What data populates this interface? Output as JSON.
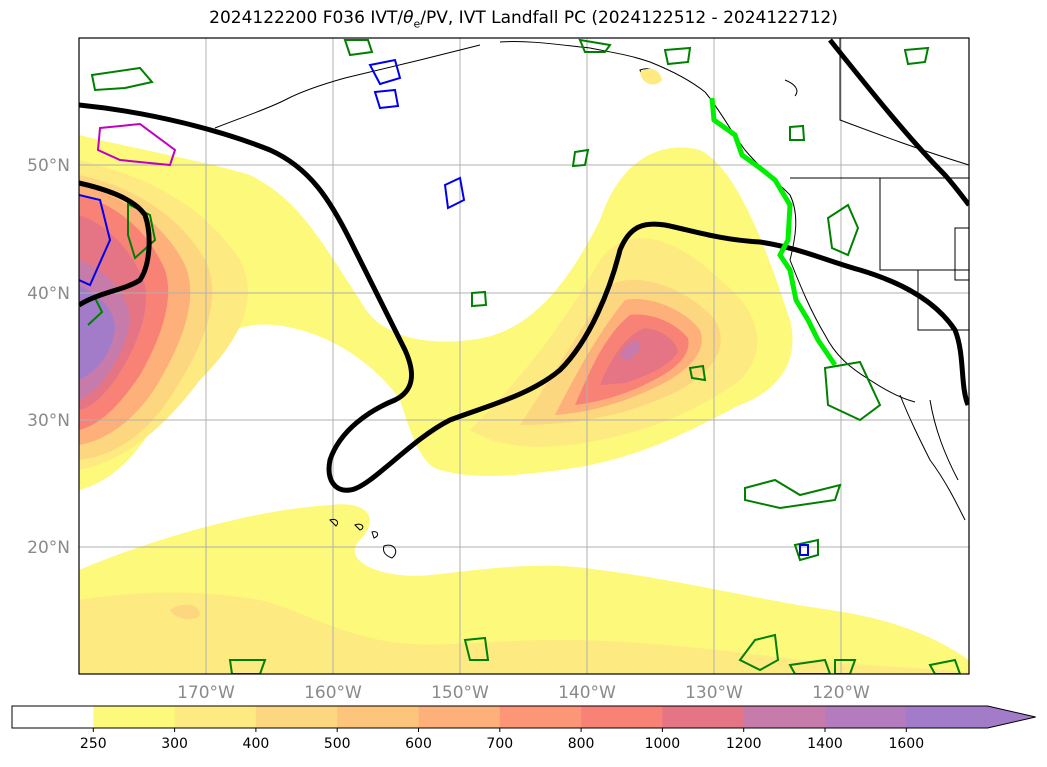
{
  "title": {
    "prefix": "2024122200 F036 IVT/",
    "theta": "θ",
    "theta_sub": "e",
    "suffix": "/PV, IVT Landfall PC (2024122512 - 2024122712)"
  },
  "map": {
    "lat_labels": [
      "50°N",
      "40°N",
      "30°N",
      "20°N"
    ],
    "lon_labels": [
      "170°W",
      "160°W",
      "150°W",
      "140°W",
      "130°W",
      "120°W"
    ],
    "landfall_line_color": "#00ee00",
    "contour_line_color": "#000000",
    "pv_contour_colors": [
      "#008000",
      "#0000ee",
      "#c000c0"
    ]
  },
  "colorbar": {
    "ticks": [
      "250",
      "300",
      "400",
      "500",
      "600",
      "700",
      "800",
      "1000",
      "1200",
      "1400",
      "1600"
    ],
    "colors": [
      "#ffffff",
      "#fdf97a",
      "#fdea80",
      "#fdd780",
      "#fdc47c",
      "#fdb07a",
      "#fc9677",
      "#f98277",
      "#e57584",
      "#c77bab",
      "#b47bbe",
      "#a27bc9"
    ],
    "extend": "max"
  }
}
